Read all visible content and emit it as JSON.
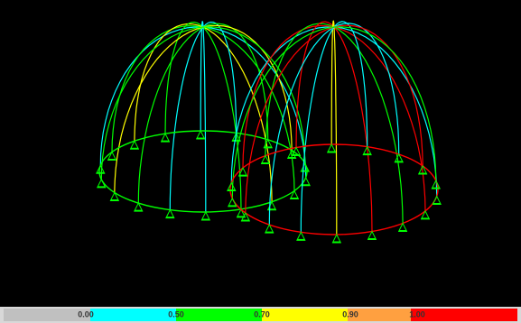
{
  "legend": {
    "labels": [
      "0.00",
      "0.50",
      "0.70",
      "0.90",
      "1.00"
    ]
  }
}
